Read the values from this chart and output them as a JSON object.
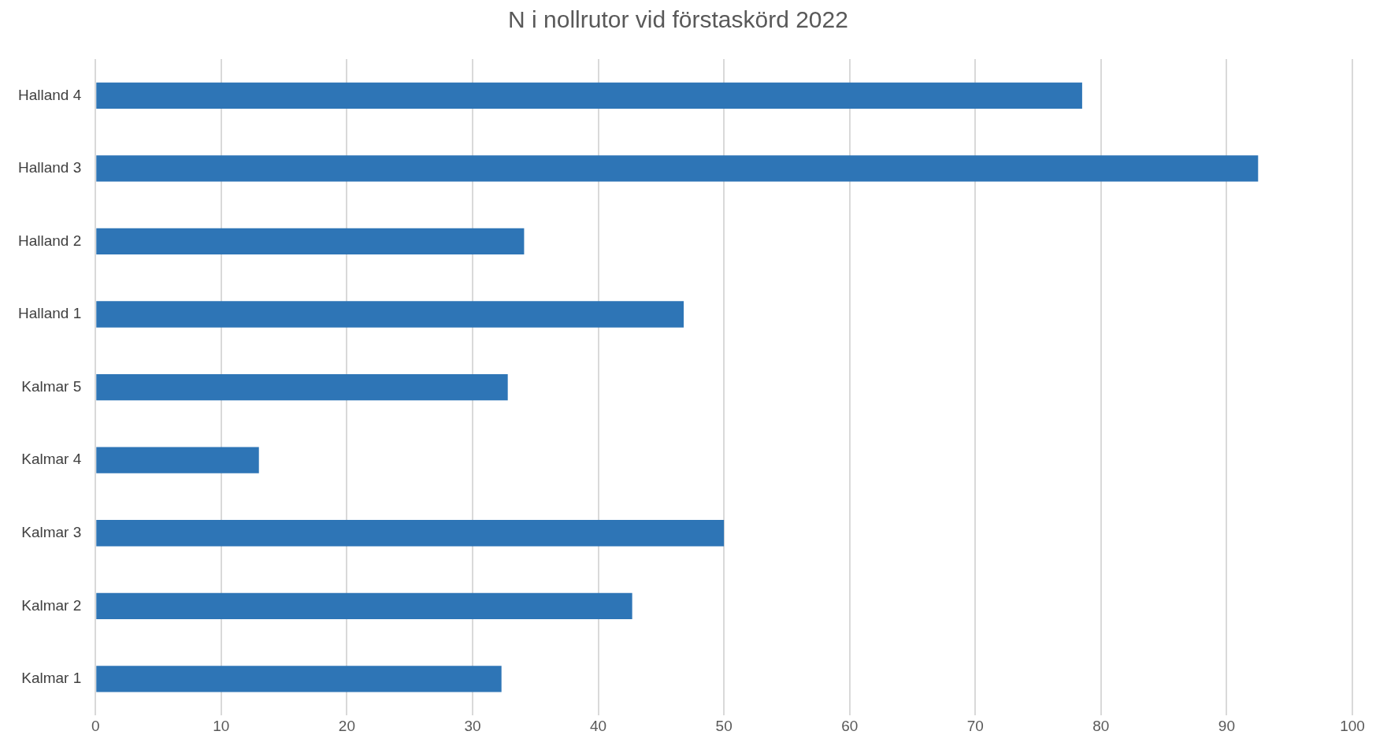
{
  "chart_data": {
    "type": "bar",
    "orientation": "horizontal",
    "title": "N i nollrutor vid förstaskörd 2022",
    "categories": [
      "Halland 4",
      "Halland 3",
      "Halland 2",
      "Halland 1",
      "Kalmar 5",
      "Kalmar 4",
      "Kalmar 3",
      "Kalmar 2",
      "Kalmar 1"
    ],
    "values": [
      78.5,
      92.5,
      34.1,
      46.8,
      32.8,
      13.0,
      50.0,
      42.7,
      32.3
    ],
    "color": "#2e75b6",
    "xlim": [
      0,
      100
    ],
    "xticks": [
      0,
      10,
      20,
      30,
      40,
      50,
      60,
      70,
      80,
      90,
      100
    ],
    "grid": "x"
  }
}
